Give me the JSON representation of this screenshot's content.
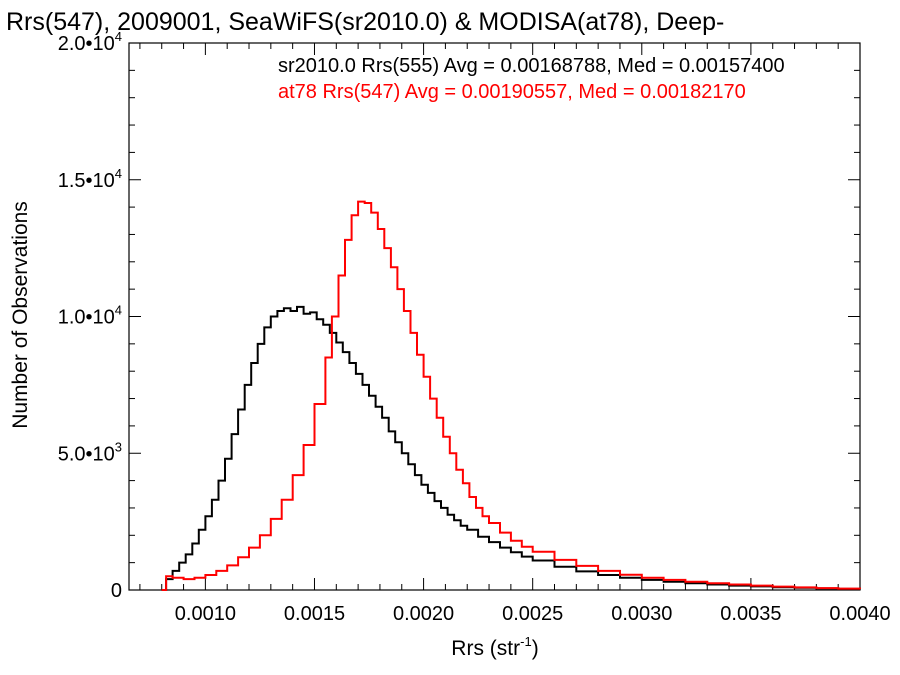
{
  "chart_data": {
    "type": "line",
    "title": "Rrs(547), 2009001, SeaWiFS(sr2010.0) & MODISA(at78), Deep-",
    "xlabel": "Rrs (str",
    "xlabel_sup": "-1",
    "xlabel_suffix": ")",
    "ylabel": "Number of Observations",
    "xlim": [
      0.00065,
      0.004
    ],
    "ylim": [
      0,
      20000
    ],
    "xticks": [
      {
        "value": 0.001,
        "label": "0.0010"
      },
      {
        "value": 0.0015,
        "label": "0.0015"
      },
      {
        "value": 0.002,
        "label": "0.0020"
      },
      {
        "value": 0.0025,
        "label": "0.0025"
      },
      {
        "value": 0.003,
        "label": "0.0030"
      },
      {
        "value": 0.0035,
        "label": "0.0035"
      },
      {
        "value": 0.004,
        "label": "0.0040"
      }
    ],
    "yticks": [
      {
        "value": 0,
        "mantissa": "0",
        "exp": ""
      },
      {
        "value": 5000,
        "mantissa": "5.0•10",
        "exp": "3"
      },
      {
        "value": 10000,
        "mantissa": "1.0•10",
        "exp": "4"
      },
      {
        "value": 15000,
        "mantissa": "1.5•10",
        "exp": "4"
      },
      {
        "value": 20000,
        "mantissa": "2.0•10",
        "exp": "4"
      }
    ],
    "grid": false,
    "series": [
      {
        "name": "sr2010.0 Rrs(555) Avg = 0.00168788, Med = 0.00157400",
        "color": "#000000",
        "points": [
          [
            0.0008,
            0
          ],
          [
            0.00082,
            400
          ],
          [
            0.00085,
            700
          ],
          [
            0.00088,
            1000
          ],
          [
            0.00091,
            1300
          ],
          [
            0.00094,
            1700
          ],
          [
            0.00097,
            2200
          ],
          [
            0.001,
            2700
          ],
          [
            0.00103,
            3300
          ],
          [
            0.00106,
            4000
          ],
          [
            0.00109,
            4800
          ],
          [
            0.00112,
            5700
          ],
          [
            0.00115,
            6600
          ],
          [
            0.00118,
            7500
          ],
          [
            0.00121,
            8300
          ],
          [
            0.00124,
            9000
          ],
          [
            0.00127,
            9600
          ],
          [
            0.0013,
            10000
          ],
          [
            0.00133,
            10200
          ],
          [
            0.00136,
            10300
          ],
          [
            0.00139,
            10200
          ],
          [
            0.00142,
            10350
          ],
          [
            0.00145,
            10100
          ],
          [
            0.00148,
            10150
          ],
          [
            0.00151,
            9900
          ],
          [
            0.00154,
            9700
          ],
          [
            0.00157,
            9400
          ],
          [
            0.0016,
            9050
          ],
          [
            0.00163,
            8700
          ],
          [
            0.00166,
            8300
          ],
          [
            0.00169,
            7900
          ],
          [
            0.00172,
            7500
          ],
          [
            0.00175,
            7100
          ],
          [
            0.00178,
            6700
          ],
          [
            0.00181,
            6300
          ],
          [
            0.00184,
            5800
          ],
          [
            0.00187,
            5400
          ],
          [
            0.0019,
            5000
          ],
          [
            0.00193,
            4600
          ],
          [
            0.00196,
            4200
          ],
          [
            0.00199,
            3850
          ],
          [
            0.00202,
            3550
          ],
          [
            0.00205,
            3250
          ],
          [
            0.00208,
            3000
          ],
          [
            0.00211,
            2750
          ],
          [
            0.00214,
            2550
          ],
          [
            0.00217,
            2350
          ],
          [
            0.0022,
            2200
          ],
          [
            0.00225,
            1950
          ],
          [
            0.0023,
            1750
          ],
          [
            0.00235,
            1550
          ],
          [
            0.0024,
            1380
          ],
          [
            0.00245,
            1220
          ],
          [
            0.0025,
            1080
          ],
          [
            0.0026,
            850
          ],
          [
            0.0027,
            680
          ],
          [
            0.0028,
            550
          ],
          [
            0.0029,
            450
          ],
          [
            0.003,
            370
          ],
          [
            0.0031,
            300
          ],
          [
            0.0032,
            250
          ],
          [
            0.0033,
            200
          ],
          [
            0.0034,
            160
          ],
          [
            0.0035,
            130
          ],
          [
            0.0036,
            100
          ],
          [
            0.0037,
            80
          ],
          [
            0.0038,
            60
          ],
          [
            0.0039,
            40
          ],
          [
            0.004,
            30
          ]
        ]
      },
      {
        "name": "at78 Rrs(547) Avg = 0.00190557, Med = 0.00182170",
        "color": "#ff0000",
        "points": [
          [
            0.0008,
            0
          ],
          [
            0.00082,
            500
          ],
          [
            0.00085,
            450
          ],
          [
            0.0009,
            400
          ],
          [
            0.00095,
            450
          ],
          [
            0.001,
            550
          ],
          [
            0.00105,
            700
          ],
          [
            0.0011,
            900
          ],
          [
            0.00115,
            1200
          ],
          [
            0.0012,
            1550
          ],
          [
            0.00125,
            2000
          ],
          [
            0.0013,
            2600
          ],
          [
            0.00135,
            3300
          ],
          [
            0.0014,
            4200
          ],
          [
            0.00145,
            5300
          ],
          [
            0.0015,
            6800
          ],
          [
            0.00155,
            8500
          ],
          [
            0.00158,
            10000
          ],
          [
            0.00161,
            11500
          ],
          [
            0.00164,
            12800
          ],
          [
            0.00167,
            13700
          ],
          [
            0.0017,
            14200
          ],
          [
            0.00173,
            14150
          ],
          [
            0.00176,
            13800
          ],
          [
            0.00179,
            13200
          ],
          [
            0.00182,
            12500
          ],
          [
            0.00185,
            11800
          ],
          [
            0.00188,
            11000
          ],
          [
            0.00191,
            10200
          ],
          [
            0.00194,
            9400
          ],
          [
            0.00197,
            8600
          ],
          [
            0.002,
            7800
          ],
          [
            0.00203,
            7000
          ],
          [
            0.00206,
            6300
          ],
          [
            0.00209,
            5600
          ],
          [
            0.00212,
            5000
          ],
          [
            0.00215,
            4400
          ],
          [
            0.00218,
            3900
          ],
          [
            0.00221,
            3400
          ],
          [
            0.00224,
            3000
          ],
          [
            0.00227,
            2700
          ],
          [
            0.0023,
            2450
          ],
          [
            0.00235,
            2100
          ],
          [
            0.0024,
            1800
          ],
          [
            0.00245,
            1580
          ],
          [
            0.0025,
            1400
          ],
          [
            0.0026,
            1100
          ],
          [
            0.0027,
            880
          ],
          [
            0.0028,
            700
          ],
          [
            0.0029,
            560
          ],
          [
            0.003,
            450
          ],
          [
            0.0031,
            370
          ],
          [
            0.0032,
            300
          ],
          [
            0.0033,
            250
          ],
          [
            0.0034,
            200
          ],
          [
            0.0035,
            160
          ],
          [
            0.0036,
            125
          ],
          [
            0.0037,
            95
          ],
          [
            0.0038,
            70
          ],
          [
            0.0039,
            50
          ],
          [
            0.004,
            35
          ]
        ]
      }
    ]
  }
}
